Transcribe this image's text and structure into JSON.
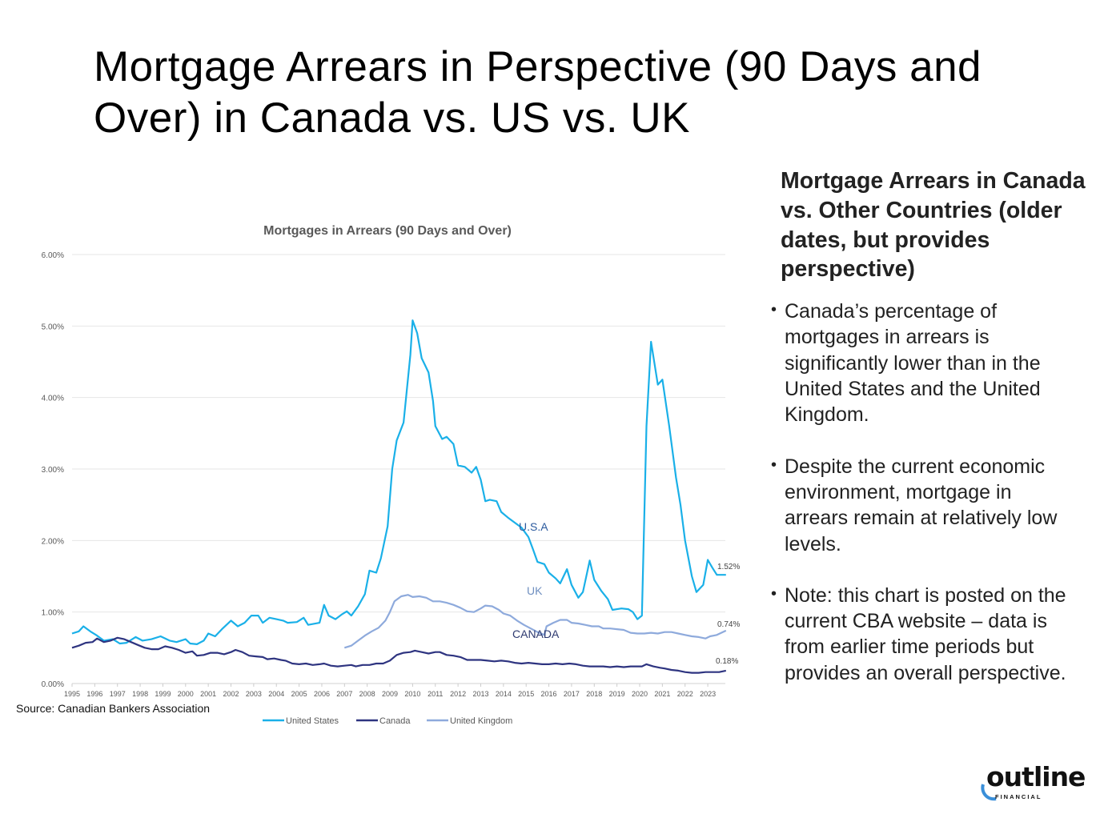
{
  "title": "Mortgage Arrears in Perspective (90 Days and Over) in Canada vs. US vs. UK",
  "side": {
    "heading": "Mortgage Arrears in Canada vs. Other Countries (older dates, but provides perspective)",
    "bullets": [
      "Canada’s percentage of mortgages in arrears is significantly lower than in the United States and the United Kingdom.",
      "Despite the current economic environment, mortgage in arrears remain at relatively low levels.",
      "Note: this chart is posted on the current CBA website – data is from earlier time periods but provides an overall perspective."
    ]
  },
  "source": "Source: Canadian Bankers Association",
  "logo": {
    "text": "outline",
    "sub": "FINANCIAL",
    "accent": "#3a8fd9"
  },
  "chart_data": {
    "type": "line",
    "title": "Mortgages in Arrears (90 Days and Over)",
    "xlabel": "",
    "ylabel": "",
    "x_ticks": [
      "1995",
      "1996",
      "1997",
      "1998",
      "1999",
      "2000",
      "2001",
      "2002",
      "2003",
      "2004",
      "2005",
      "2006",
      "2007",
      "2008",
      "2009",
      "2010",
      "2011",
      "2012",
      "2013",
      "2014",
      "2015",
      "2016",
      "2017",
      "2018",
      "2019",
      "2020",
      "2021",
      "2022",
      "2023"
    ],
    "y_ticks": [
      "0.00%",
      "1.00%",
      "2.00%",
      "3.00%",
      "4.00%",
      "5.00%",
      "6.00%"
    ],
    "ylim": [
      0,
      6
    ],
    "grid": true,
    "legend_position": "bottom",
    "annotations": {
      "us": "U.S.A",
      "uk": "UK",
      "canada": "CANADA"
    },
    "end_labels": {
      "us": "1.52%",
      "uk": "0.74%",
      "canada": "0.18%"
    },
    "series": [
      {
        "name": "United States",
        "color": "#1ab0e8",
        "points": [
          [
            1995,
            0.7
          ],
          [
            1995.3,
            0.73
          ],
          [
            1995.5,
            0.8
          ],
          [
            1995.8,
            0.73
          ],
          [
            1996.1,
            0.67
          ],
          [
            1996.4,
            0.6
          ],
          [
            1996.8,
            0.62
          ],
          [
            1997.1,
            0.56
          ],
          [
            1997.4,
            0.57
          ],
          [
            1997.8,
            0.65
          ],
          [
            1998.1,
            0.6
          ],
          [
            1998.5,
            0.62
          ],
          [
            1998.9,
            0.66
          ],
          [
            1999.3,
            0.6
          ],
          [
            1999.6,
            0.58
          ],
          [
            2000,
            0.62
          ],
          [
            2000.2,
            0.56
          ],
          [
            2000.5,
            0.55
          ],
          [
            2000.8,
            0.6
          ],
          [
            2001,
            0.7
          ],
          [
            2001.3,
            0.66
          ],
          [
            2001.6,
            0.76
          ],
          [
            2002,
            0.88
          ],
          [
            2002.3,
            0.8
          ],
          [
            2002.6,
            0.85
          ],
          [
            2002.9,
            0.95
          ],
          [
            2003.2,
            0.95
          ],
          [
            2003.4,
            0.85
          ],
          [
            2003.7,
            0.92
          ],
          [
            2004,
            0.9
          ],
          [
            2004.3,
            0.88
          ],
          [
            2004.5,
            0.85
          ],
          [
            2004.9,
            0.86
          ],
          [
            2005.2,
            0.92
          ],
          [
            2005.4,
            0.82
          ],
          [
            2005.9,
            0.85
          ],
          [
            2006.1,
            1.1
          ],
          [
            2006.3,
            0.95
          ],
          [
            2006.6,
            0.9
          ],
          [
            2006.9,
            0.97
          ],
          [
            2007.1,
            1.01
          ],
          [
            2007.3,
            0.95
          ],
          [
            2007.6,
            1.08
          ],
          [
            2007.9,
            1.25
          ],
          [
            2008.1,
            1.58
          ],
          [
            2008.4,
            1.55
          ],
          [
            2008.6,
            1.75
          ],
          [
            2008.9,
            2.2
          ],
          [
            2009.1,
            3.0
          ],
          [
            2009.3,
            3.4
          ],
          [
            2009.6,
            3.65
          ],
          [
            2009.9,
            4.6
          ],
          [
            2010,
            5.08
          ],
          [
            2010.2,
            4.9
          ],
          [
            2010.4,
            4.55
          ],
          [
            2010.7,
            4.35
          ],
          [
            2010.9,
            3.95
          ],
          [
            2011,
            3.6
          ],
          [
            2011.3,
            3.42
          ],
          [
            2011.5,
            3.45
          ],
          [
            2011.8,
            3.35
          ],
          [
            2012,
            3.05
          ],
          [
            2012.3,
            3.03
          ],
          [
            2012.6,
            2.95
          ],
          [
            2012.8,
            3.03
          ],
          [
            2013,
            2.85
          ],
          [
            2013.2,
            2.55
          ],
          [
            2013.4,
            2.57
          ],
          [
            2013.7,
            2.55
          ],
          [
            2013.9,
            2.4
          ],
          [
            2014.2,
            2.32
          ],
          [
            2014.5,
            2.25
          ],
          [
            2014.8,
            2.18
          ],
          [
            2015.1,
            2.05
          ],
          [
            2015.3,
            1.88
          ],
          [
            2015.5,
            1.7
          ],
          [
            2015.8,
            1.67
          ],
          [
            2016,
            1.55
          ],
          [
            2016.3,
            1.47
          ],
          [
            2016.5,
            1.4
          ],
          [
            2016.8,
            1.6
          ],
          [
            2017,
            1.38
          ],
          [
            2017.3,
            1.2
          ],
          [
            2017.5,
            1.28
          ],
          [
            2017.8,
            1.72
          ],
          [
            2018,
            1.45
          ],
          [
            2018.3,
            1.3
          ],
          [
            2018.6,
            1.18
          ],
          [
            2018.8,
            1.03
          ],
          [
            2019.2,
            1.05
          ],
          [
            2019.5,
            1.04
          ],
          [
            2019.7,
            1.0
          ],
          [
            2019.9,
            0.9
          ],
          [
            2020.1,
            0.95
          ],
          [
            2020.3,
            3.6
          ],
          [
            2020.5,
            4.78
          ],
          [
            2020.8,
            4.18
          ],
          [
            2021,
            4.25
          ],
          [
            2021.3,
            3.6
          ],
          [
            2021.6,
            2.88
          ],
          [
            2021.8,
            2.5
          ],
          [
            2022,
            2.0
          ],
          [
            2022.3,
            1.5
          ],
          [
            2022.5,
            1.28
          ],
          [
            2022.8,
            1.38
          ],
          [
            2023,
            1.73
          ],
          [
            2023.2,
            1.62
          ],
          [
            2023.4,
            1.52
          ],
          [
            2023.8,
            1.52
          ]
        ]
      },
      {
        "name": "Canada",
        "color": "#2e3480",
        "points": [
          [
            1995,
            0.5
          ],
          [
            1995.3,
            0.53
          ],
          [
            1995.6,
            0.57
          ],
          [
            1995.9,
            0.58
          ],
          [
            1996.1,
            0.63
          ],
          [
            1996.4,
            0.58
          ],
          [
            1996.7,
            0.6
          ],
          [
            1997,
            0.64
          ],
          [
            1997.3,
            0.62
          ],
          [
            1997.6,
            0.58
          ],
          [
            1997.9,
            0.54
          ],
          [
            1998.2,
            0.5
          ],
          [
            1998.5,
            0.48
          ],
          [
            1998.8,
            0.48
          ],
          [
            1999.1,
            0.52
          ],
          [
            1999.4,
            0.5
          ],
          [
            1999.7,
            0.47
          ],
          [
            2000,
            0.43
          ],
          [
            2000.3,
            0.45
          ],
          [
            2000.5,
            0.39
          ],
          [
            2000.8,
            0.4
          ],
          [
            2001.1,
            0.43
          ],
          [
            2001.4,
            0.43
          ],
          [
            2001.7,
            0.41
          ],
          [
            2002,
            0.44
          ],
          [
            2002.2,
            0.47
          ],
          [
            2002.5,
            0.44
          ],
          [
            2002.8,
            0.39
          ],
          [
            2003.1,
            0.38
          ],
          [
            2003.4,
            0.37
          ],
          [
            2003.6,
            0.34
          ],
          [
            2003.9,
            0.35
          ],
          [
            2004.2,
            0.33
          ],
          [
            2004.4,
            0.32
          ],
          [
            2004.7,
            0.28
          ],
          [
            2005,
            0.27
          ],
          [
            2005.3,
            0.28
          ],
          [
            2005.6,
            0.26
          ],
          [
            2005.9,
            0.27
          ],
          [
            2006.1,
            0.28
          ],
          [
            2006.4,
            0.25
          ],
          [
            2006.7,
            0.24
          ],
          [
            2007,
            0.25
          ],
          [
            2007.3,
            0.26
          ],
          [
            2007.5,
            0.24
          ],
          [
            2007.8,
            0.26
          ],
          [
            2008.1,
            0.26
          ],
          [
            2008.4,
            0.28
          ],
          [
            2008.7,
            0.28
          ],
          [
            2009,
            0.32
          ],
          [
            2009.3,
            0.4
          ],
          [
            2009.6,
            0.43
          ],
          [
            2009.9,
            0.44
          ],
          [
            2010.1,
            0.46
          ],
          [
            2010.4,
            0.44
          ],
          [
            2010.7,
            0.42
          ],
          [
            2011,
            0.44
          ],
          [
            2011.2,
            0.44
          ],
          [
            2011.5,
            0.4
          ],
          [
            2011.8,
            0.39
          ],
          [
            2012.1,
            0.37
          ],
          [
            2012.4,
            0.33
          ],
          [
            2012.7,
            0.33
          ],
          [
            2013,
            0.33
          ],
          [
            2013.3,
            0.32
          ],
          [
            2013.6,
            0.31
          ],
          [
            2013.9,
            0.32
          ],
          [
            2014.2,
            0.31
          ],
          [
            2014.5,
            0.29
          ],
          [
            2014.8,
            0.28
          ],
          [
            2015.1,
            0.29
          ],
          [
            2015.4,
            0.28
          ],
          [
            2015.7,
            0.27
          ],
          [
            2016,
            0.27
          ],
          [
            2016.3,
            0.28
          ],
          [
            2016.6,
            0.27
          ],
          [
            2016.9,
            0.28
          ],
          [
            2017.2,
            0.27
          ],
          [
            2017.5,
            0.25
          ],
          [
            2017.8,
            0.24
          ],
          [
            2018.1,
            0.24
          ],
          [
            2018.4,
            0.24
          ],
          [
            2018.7,
            0.23
          ],
          [
            2019,
            0.24
          ],
          [
            2019.3,
            0.23
          ],
          [
            2019.6,
            0.24
          ],
          [
            2019.9,
            0.24
          ],
          [
            2020.1,
            0.24
          ],
          [
            2020.3,
            0.27
          ],
          [
            2020.6,
            0.24
          ],
          [
            2020.9,
            0.22
          ],
          [
            2021.1,
            0.21
          ],
          [
            2021.4,
            0.19
          ],
          [
            2021.7,
            0.18
          ],
          [
            2022,
            0.16
          ],
          [
            2022.3,
            0.15
          ],
          [
            2022.6,
            0.15
          ],
          [
            2022.9,
            0.16
          ],
          [
            2023.2,
            0.16
          ],
          [
            2023.5,
            0.16
          ],
          [
            2023.8,
            0.18
          ]
        ]
      },
      {
        "name": "United Kingdom",
        "color": "#8eaadc",
        "points": [
          [
            2007,
            0.5
          ],
          [
            2007.3,
            0.53
          ],
          [
            2007.6,
            0.6
          ],
          [
            2007.9,
            0.67
          ],
          [
            2008.2,
            0.73
          ],
          [
            2008.5,
            0.78
          ],
          [
            2008.8,
            0.88
          ],
          [
            2009,
            1.0
          ],
          [
            2009.2,
            1.15
          ],
          [
            2009.5,
            1.22
          ],
          [
            2009.8,
            1.24
          ],
          [
            2010,
            1.21
          ],
          [
            2010.3,
            1.22
          ],
          [
            2010.6,
            1.2
          ],
          [
            2010.9,
            1.15
          ],
          [
            2011.2,
            1.15
          ],
          [
            2011.5,
            1.13
          ],
          [
            2011.8,
            1.1
          ],
          [
            2012.1,
            1.06
          ],
          [
            2012.4,
            1.01
          ],
          [
            2012.7,
            1.0
          ],
          [
            2013,
            1.05
          ],
          [
            2013.2,
            1.09
          ],
          [
            2013.5,
            1.08
          ],
          [
            2013.8,
            1.03
          ],
          [
            2014,
            0.98
          ],
          [
            2014.3,
            0.95
          ],
          [
            2014.6,
            0.88
          ],
          [
            2014.9,
            0.82
          ],
          [
            2015.2,
            0.77
          ],
          [
            2015.5,
            0.72
          ],
          [
            2015.8,
            0.68
          ],
          [
            2015.9,
            0.8
          ],
          [
            2016.2,
            0.85
          ],
          [
            2016.5,
            0.89
          ],
          [
            2016.8,
            0.89
          ],
          [
            2017,
            0.85
          ],
          [
            2017.3,
            0.84
          ],
          [
            2017.6,
            0.82
          ],
          [
            2017.9,
            0.8
          ],
          [
            2018.2,
            0.8
          ],
          [
            2018.4,
            0.77
          ],
          [
            2018.7,
            0.77
          ],
          [
            2019,
            0.76
          ],
          [
            2019.3,
            0.75
          ],
          [
            2019.6,
            0.71
          ],
          [
            2019.9,
            0.7
          ],
          [
            2020.2,
            0.7
          ],
          [
            2020.5,
            0.71
          ],
          [
            2020.8,
            0.7
          ],
          [
            2021.1,
            0.72
          ],
          [
            2021.4,
            0.72
          ],
          [
            2021.7,
            0.7
          ],
          [
            2022,
            0.68
          ],
          [
            2022.3,
            0.66
          ],
          [
            2022.6,
            0.65
          ],
          [
            2022.9,
            0.63
          ],
          [
            2023.1,
            0.66
          ],
          [
            2023.4,
            0.68
          ],
          [
            2023.8,
            0.74
          ]
        ]
      }
    ]
  }
}
